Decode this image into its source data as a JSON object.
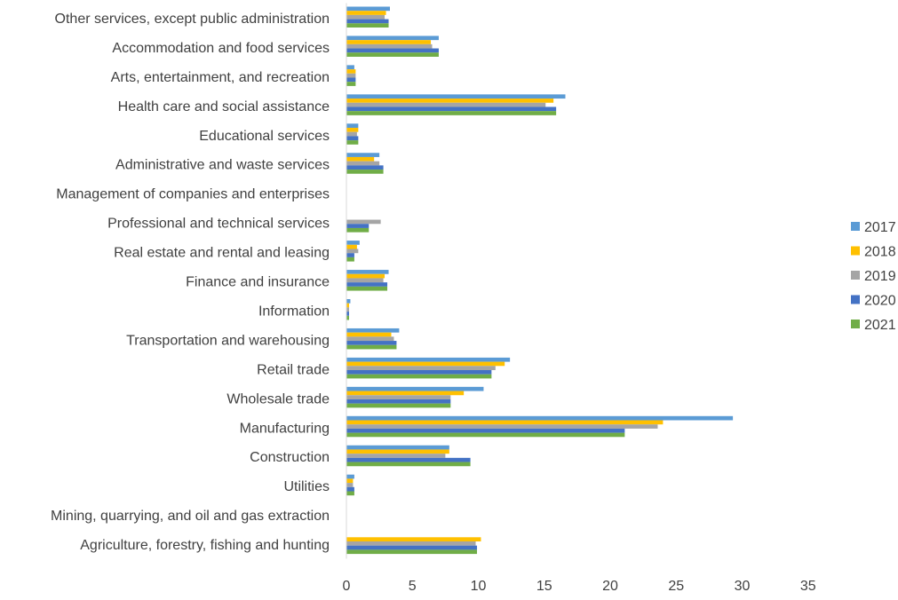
{
  "chart_data": {
    "type": "bar",
    "orientation": "horizontal",
    "title": "",
    "xlabel": "",
    "ylabel": "",
    "xlim": [
      0,
      35
    ],
    "x_ticks": [
      "0",
      "5",
      "10",
      "15",
      "20",
      "25",
      "30",
      "35"
    ],
    "grid": false,
    "legend_position": "right",
    "categories": [
      "Other services, except public administration",
      "Accommodation and food services",
      "Arts, entertainment, and recreation",
      "Health care and social assistance",
      "Educational services",
      "Administrative and waste services",
      "Management of companies and enterprises",
      "Professional and technical services",
      "Real estate and rental and leasing",
      "Finance and insurance",
      "Information",
      "Transportation and warehousing",
      "Retail trade",
      "Wholesale trade",
      "Manufacturing",
      "Construction",
      "Utilities",
      "Mining, quarrying, and oil and gas extraction",
      "Agriculture, forestry, fishing and hunting"
    ],
    "series": [
      {
        "name": "2017",
        "color": "#5B9BD5",
        "values": [
          3.3,
          7.0,
          0.6,
          16.6,
          0.9,
          2.5,
          0,
          0,
          1.0,
          3.2,
          0.3,
          4.0,
          12.4,
          10.4,
          29.3,
          7.8,
          0.6,
          0,
          0
        ]
      },
      {
        "name": "2018",
        "color": "#FFC000",
        "values": [
          3.0,
          6.4,
          0.7,
          15.7,
          0.9,
          2.1,
          0,
          0,
          0.8,
          2.9,
          0.2,
          3.4,
          12.0,
          8.9,
          24.0,
          7.8,
          0.5,
          0,
          10.2
        ]
      },
      {
        "name": "2019",
        "color": "#A5A5A5",
        "values": [
          2.9,
          6.5,
          0.7,
          15.1,
          0.8,
          2.5,
          0,
          2.6,
          0.9,
          2.8,
          0.2,
          3.6,
          11.3,
          7.9,
          23.6,
          7.5,
          0.5,
          0,
          9.8
        ]
      },
      {
        "name": "2020",
        "color": "#4472C4",
        "values": [
          3.2,
          7.0,
          0.7,
          15.9,
          0.9,
          2.8,
          0,
          1.7,
          0.6,
          3.1,
          0.2,
          3.8,
          11.0,
          7.9,
          21.1,
          9.4,
          0.6,
          0,
          9.9
        ]
      },
      {
        "name": "2021",
        "color": "#70AD47",
        "values": [
          3.2,
          7.0,
          0.7,
          15.9,
          0.9,
          2.8,
          0,
          1.7,
          0.6,
          3.1,
          0.2,
          3.8,
          11.0,
          7.9,
          21.1,
          9.4,
          0.6,
          0,
          9.9
        ]
      }
    ]
  }
}
